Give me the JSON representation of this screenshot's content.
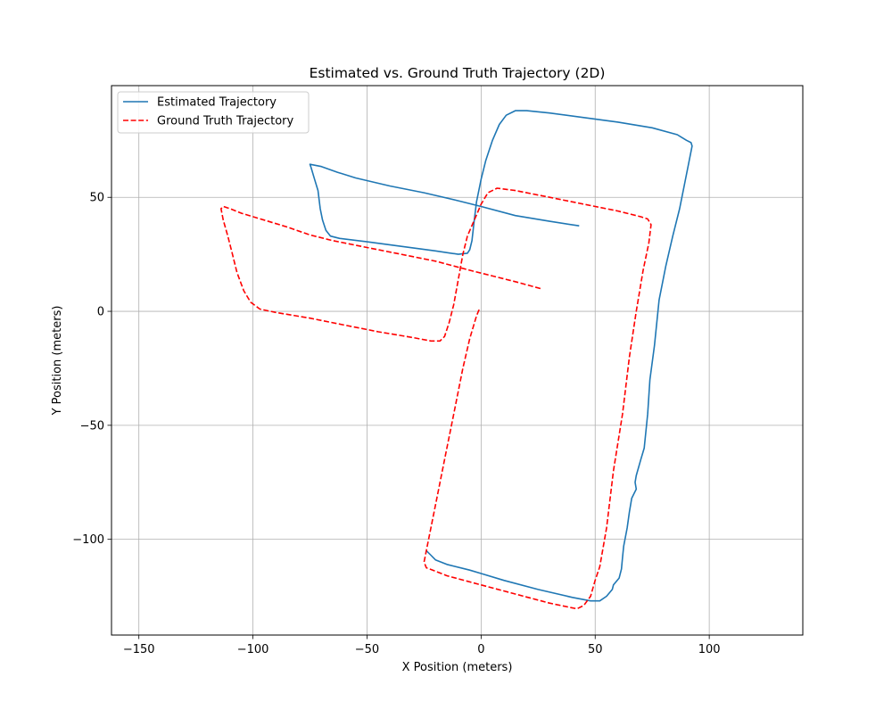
{
  "chart_data": {
    "type": "line",
    "title": "Estimated vs. Ground Truth Trajectory (2D)",
    "xlabel": "X Position (meters)",
    "ylabel": "Y Position (meters)",
    "xlim": [
      -162,
      141
    ],
    "ylim": [
      -142,
      99
    ],
    "xticks": [
      -150,
      -100,
      -50,
      0,
      50,
      100
    ],
    "xtick_labels": [
      "−150",
      "−100",
      "−50",
      "0",
      "50",
      "100"
    ],
    "yticks": [
      -100,
      -50,
      0,
      50
    ],
    "ytick_labels": [
      "−100",
      "−50",
      "0",
      "50"
    ],
    "grid": true,
    "legend_position": "top-left",
    "series": [
      {
        "name": "Estimated Trajectory",
        "color": "#1f77b4",
        "linestyle": "solid",
        "points": [
          [
            43,
            37.5
          ],
          [
            30,
            39.5
          ],
          [
            15,
            42
          ],
          [
            0,
            46
          ],
          [
            -10,
            48.5
          ],
          [
            -25,
            52
          ],
          [
            -40,
            55
          ],
          [
            -55,
            58.5
          ],
          [
            -63,
            61
          ],
          [
            -70,
            63.5
          ],
          [
            -75,
            64.5
          ],
          [
            -74.5,
            63
          ],
          [
            -73,
            58
          ],
          [
            -71.5,
            53
          ],
          [
            -70.5,
            45
          ],
          [
            -69.5,
            40
          ],
          [
            -68,
            35.5
          ],
          [
            -66,
            33
          ],
          [
            -62,
            32
          ],
          [
            -50,
            30.5
          ],
          [
            -35,
            28.5
          ],
          [
            -20,
            26.5
          ],
          [
            -10,
            25
          ],
          [
            -6,
            25.5
          ],
          [
            -5,
            27
          ],
          [
            -4,
            31
          ],
          [
            -3,
            40
          ],
          [
            -2,
            48
          ],
          [
            0,
            58
          ],
          [
            2,
            66
          ],
          [
            5,
            75
          ],
          [
            8,
            82
          ],
          [
            11,
            86
          ],
          [
            15,
            88
          ],
          [
            20,
            88
          ],
          [
            30,
            87
          ],
          [
            45,
            85
          ],
          [
            60,
            83
          ],
          [
            75,
            80.5
          ],
          [
            86,
            77.5
          ],
          [
            90,
            75
          ],
          [
            92,
            74
          ],
          [
            92.5,
            72.5
          ],
          [
            91,
            65
          ],
          [
            89,
            55
          ],
          [
            87,
            45
          ],
          [
            84,
            33
          ],
          [
            81,
            20
          ],
          [
            78,
            5
          ],
          [
            76,
            -15
          ],
          [
            74,
            -30
          ],
          [
            73,
            -45
          ],
          [
            71.5,
            -60
          ],
          [
            70,
            -65
          ],
          [
            68,
            -72
          ],
          [
            67.5,
            -75
          ],
          [
            68,
            -78
          ],
          [
            66,
            -82
          ],
          [
            65,
            -88
          ],
          [
            64,
            -95
          ],
          [
            62.5,
            -103
          ],
          [
            62,
            -108
          ],
          [
            61.5,
            -113
          ],
          [
            60.5,
            -117
          ],
          [
            58,
            -120
          ],
          [
            57.5,
            -122
          ],
          [
            55,
            -125
          ],
          [
            52,
            -127
          ],
          [
            48,
            -127
          ],
          [
            40,
            -125.5
          ],
          [
            25,
            -122
          ],
          [
            10,
            -118
          ],
          [
            0,
            -115
          ],
          [
            -5,
            -113.5
          ],
          [
            -15,
            -111
          ],
          [
            -20,
            -109
          ],
          [
            -22,
            -107
          ],
          [
            -24,
            -105
          ]
        ]
      },
      {
        "name": "Ground Truth Trajectory",
        "color": "#ff0000",
        "linestyle": "dashed",
        "points": [
          [
            26,
            10
          ],
          [
            15,
            13
          ],
          [
            5,
            15.5
          ],
          [
            -5,
            18
          ],
          [
            -20,
            22
          ],
          [
            -35,
            25
          ],
          [
            -50,
            28
          ],
          [
            -65,
            31
          ],
          [
            -75,
            33.5
          ],
          [
            -85,
            37
          ],
          [
            -95,
            40
          ],
          [
            -105,
            43
          ],
          [
            -110,
            45
          ],
          [
            -113,
            46
          ],
          [
            -114,
            45
          ],
          [
            -113,
            40
          ],
          [
            -111,
            33
          ],
          [
            -109,
            25
          ],
          [
            -107,
            17
          ],
          [
            -104,
            9
          ],
          [
            -101,
            4
          ],
          [
            -97,
            1
          ],
          [
            -90,
            -0.5
          ],
          [
            -75,
            -3
          ],
          [
            -60,
            -6
          ],
          [
            -45,
            -9
          ],
          [
            -30,
            -11.5
          ],
          [
            -22,
            -13
          ],
          [
            -18,
            -13
          ],
          [
            -16,
            -11
          ],
          [
            -14,
            -5
          ],
          [
            -12,
            3
          ],
          [
            -10,
            14
          ],
          [
            -8,
            25
          ],
          [
            -6,
            33
          ],
          [
            -3,
            40
          ],
          [
            0,
            47
          ],
          [
            3,
            52
          ],
          [
            7,
            54
          ],
          [
            15,
            53
          ],
          [
            30,
            50
          ],
          [
            45,
            47
          ],
          [
            60,
            44
          ],
          [
            70,
            41.5
          ],
          [
            73,
            40.5
          ],
          [
            74.5,
            38
          ],
          [
            73.5,
            30
          ],
          [
            71,
            18
          ],
          [
            68,
            0
          ],
          [
            65,
            -20
          ],
          [
            62,
            -45
          ],
          [
            58,
            -70
          ],
          [
            55,
            -95
          ],
          [
            52,
            -112
          ],
          [
            50,
            -118
          ],
          [
            48,
            -125
          ],
          [
            45,
            -129
          ],
          [
            42,
            -130.5
          ],
          [
            30,
            -128
          ],
          [
            15,
            -124
          ],
          [
            0,
            -120
          ],
          [
            -15,
            -116
          ],
          [
            -20,
            -114
          ],
          [
            -24,
            -112.5
          ],
          [
            -25,
            -110
          ],
          [
            -23,
            -100
          ],
          [
            -20,
            -85
          ],
          [
            -16,
            -65
          ],
          [
            -12,
            -45
          ],
          [
            -8,
            -25
          ],
          [
            -5,
            -12
          ],
          [
            -2,
            -2
          ],
          [
            -1,
            0.5
          ],
          [
            -0.5,
            0.5
          ],
          [
            0,
            0
          ]
        ]
      }
    ]
  }
}
